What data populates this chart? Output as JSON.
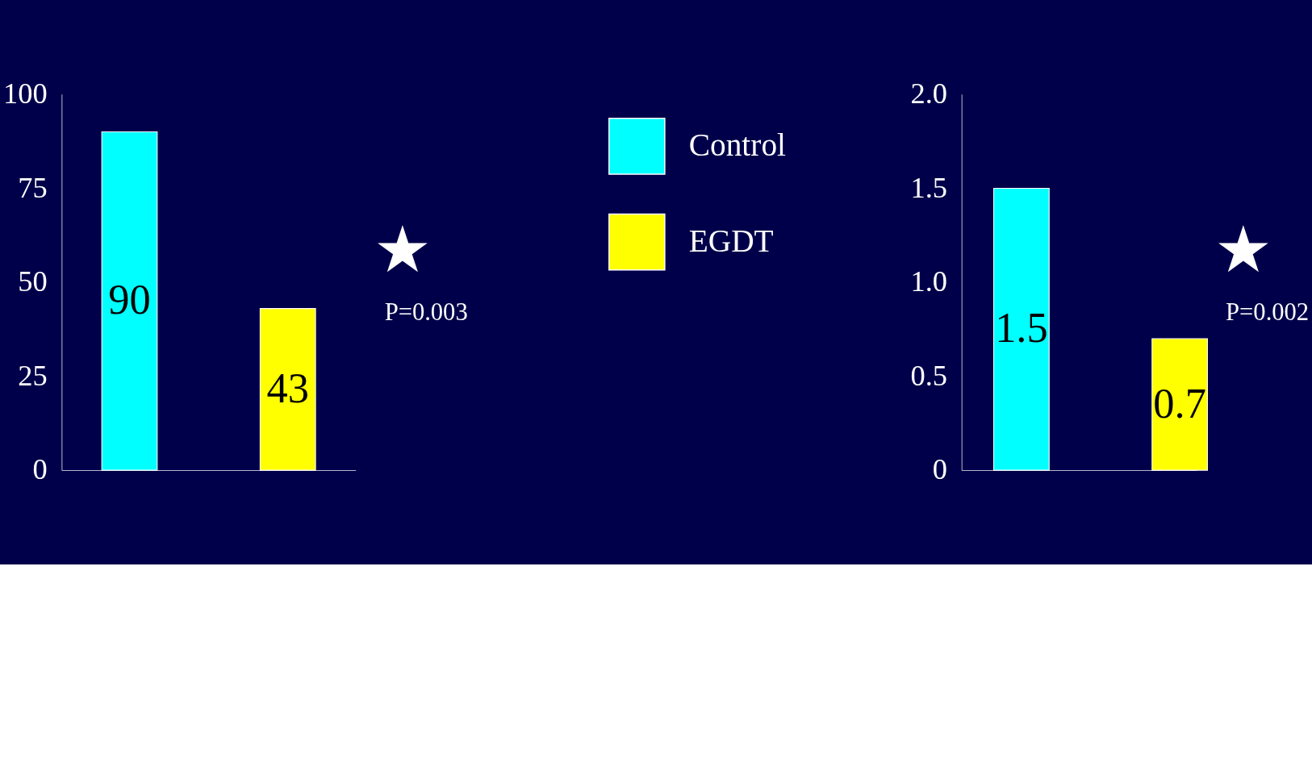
{
  "chart_data": [
    {
      "type": "bar",
      "categories": [
        null
      ],
      "series": [
        {
          "name": "Control",
          "color": "#00ffff",
          "values": [
            90
          ]
        },
        {
          "name": "EGDT",
          "color": "#ffff00",
          "values": [
            43
          ]
        }
      ],
      "ylim": [
        0,
        100
      ],
      "yticks": [
        0,
        25,
        50,
        75,
        100
      ],
      "grid": false,
      "data_labels": true,
      "legend": "top right",
      "annotations": [
        "★",
        "P=0.003"
      ]
    },
    {
      "type": "bar",
      "categories": [
        null
      ],
      "series": [
        {
          "name": "Control",
          "color": "#00ffff",
          "values": [
            1.5
          ]
        },
        {
          "name": "EGDT",
          "color": "#ffff00",
          "values": [
            0.7
          ]
        }
      ],
      "ylim": [
        0,
        2.0
      ],
      "yticks": [
        0,
        0.5,
        {
          "value": 1.0,
          "label": "1.0"
        },
        1.5,
        {
          "value": 2.0,
          "label": "2.0"
        }
      ],
      "grid": false,
      "data_labels": true,
      "legend": false,
      "annotations": [
        "★",
        "P=0.002"
      ]
    }
  ]
}
